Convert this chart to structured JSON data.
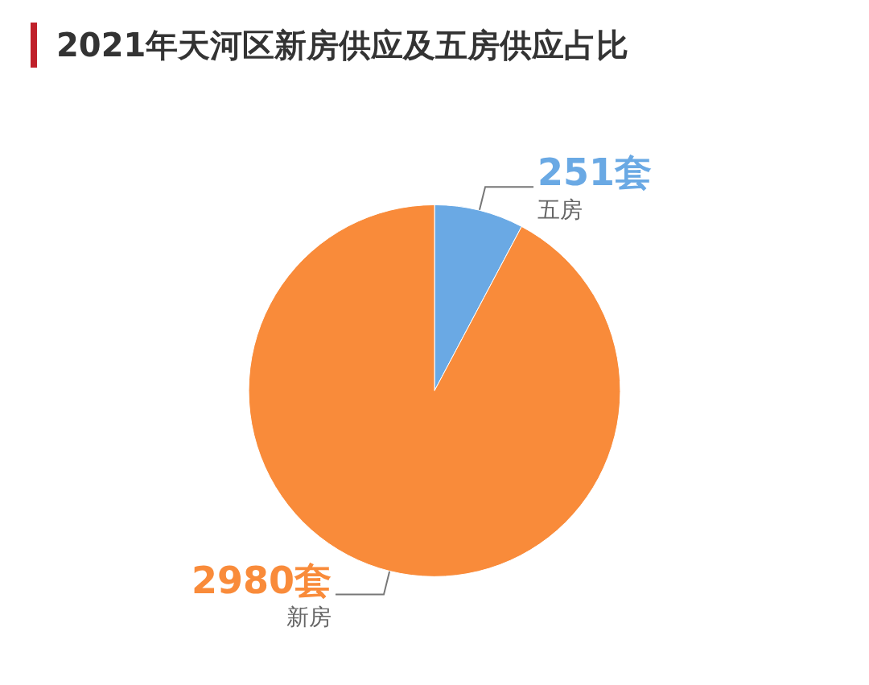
{
  "chart_data": {
    "type": "pie",
    "title": "2021年天河区新房供应及五房供应占比",
    "categories": [
      "五房",
      "新房"
    ],
    "values": [
      251,
      2980
    ],
    "value_labels": [
      "251套",
      "2980套"
    ],
    "colors": [
      "#6aa9e4",
      "#f98b3a"
    ]
  }
}
